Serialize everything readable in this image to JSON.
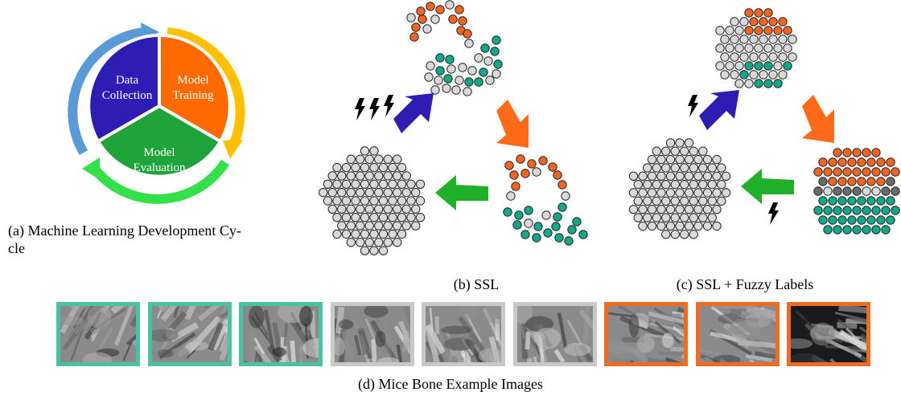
{
  "panels": {
    "a": {
      "caption": "(a) Machine Learning Development Cy-cle",
      "caption_line1": "(a) Machine Learning Development Cy-",
      "caption_line2": "cle",
      "segments": [
        {
          "label_line1": "Data",
          "label_line2": "Collection",
          "color": "#2e1db2"
        },
        {
          "label_line1": "Model",
          "label_line2": "Training",
          "color": "#ff6a00"
        },
        {
          "label_line1": "Model",
          "label_line2": "Evaluation",
          "color": "#1fa33a"
        }
      ],
      "arrow_colors": [
        "#5b9bd5",
        "#ffc000",
        "#33e04a"
      ]
    },
    "b": {
      "caption": "(b) SSL"
    },
    "c": {
      "caption": "(c) SSL + Fuzzy Labels"
    },
    "d": {
      "caption": "(d) Mice Bone Example Images",
      "tiles": [
        {
          "class": "green"
        },
        {
          "class": "green"
        },
        {
          "class": "green"
        },
        {
          "class": "gray"
        },
        {
          "class": "gray"
        },
        {
          "class": "gray"
        },
        {
          "class": "orange"
        },
        {
          "class": "orange"
        },
        {
          "class": "orange"
        }
      ]
    }
  },
  "colors": {
    "orange": "#f26522",
    "teal": "#14a88a",
    "gray_point": "#d9d9d9",
    "dark_point": "#6b6b6b",
    "arrow_blue": "#2e1db2",
    "arrow_orange": "#ff6a1a",
    "arrow_green": "#20b02a",
    "tile_green": "#4ac1a0",
    "tile_gray": "#c8c8c8",
    "tile_orange": "#ef6a23"
  }
}
